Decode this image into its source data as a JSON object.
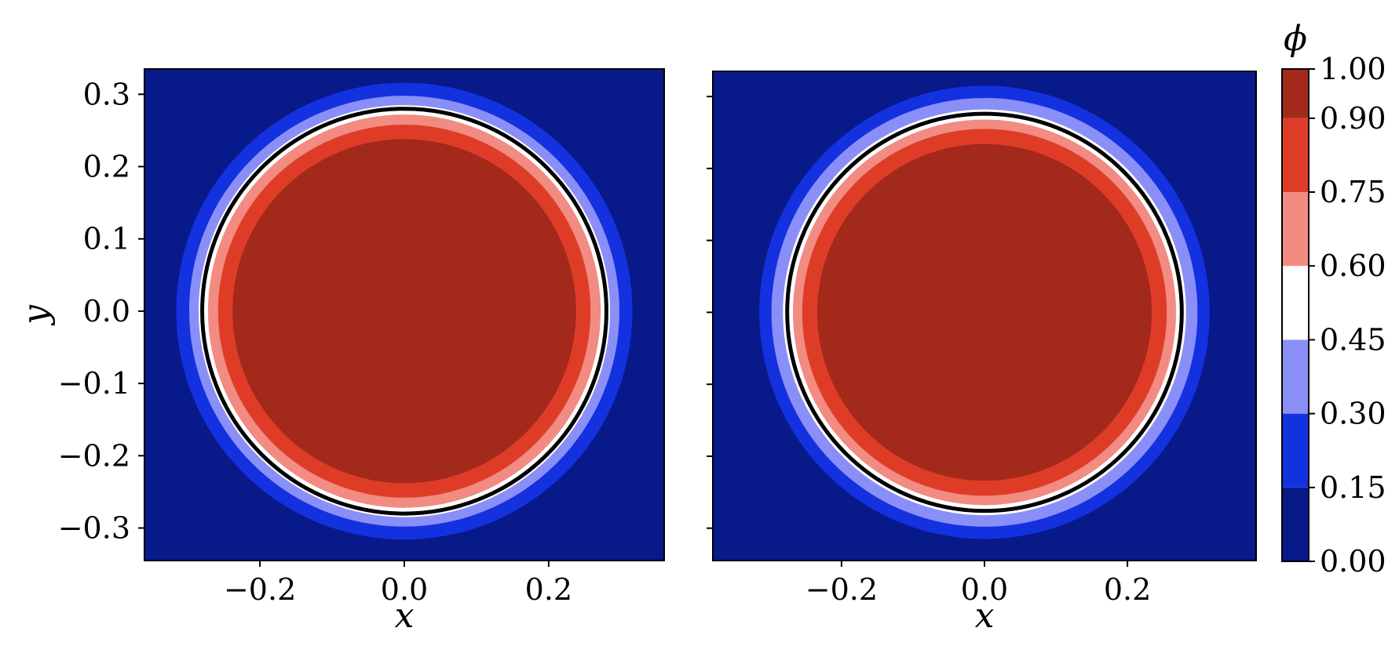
{
  "chart_data": [
    {
      "type": "heatmap",
      "plot": "filled-contour",
      "field": "phi",
      "shape": "circle",
      "center": [
        0.0,
        0.0
      ],
      "contour_radius": 0.28,
      "contour_line_styles": [
        "solid-black",
        "white"
      ],
      "xlabel": "x",
      "ylabel": "y",
      "xlim": [
        -0.36,
        0.36
      ],
      "ylim": [
        -0.345,
        0.335
      ],
      "xticks": [
        -0.2,
        0.0,
        0.2
      ],
      "xtick_labels": [
        "−0.2",
        "0.0",
        "0.2"
      ],
      "yticks": [
        0.3,
        0.2,
        0.1,
        0.0,
        -0.1,
        -0.2,
        -0.3
      ],
      "ytick_labels": [
        "0.3",
        "0.2",
        "0.1",
        "0.0",
        "−0.1",
        "−0.2",
        "−0.3"
      ],
      "band_radii": [
        {
          "level_min": 0.9,
          "level_max": 1.0,
          "radius": 0.238
        },
        {
          "level_min": 0.75,
          "level_max": 0.9,
          "radius": 0.258
        },
        {
          "level_min": 0.6,
          "level_max": 0.75,
          "radius": 0.272
        },
        {
          "level_min": 0.45,
          "level_max": 0.6,
          "radius": 0.285
        },
        {
          "level_min": 0.3,
          "level_max": 0.45,
          "radius": 0.298
        },
        {
          "level_min": 0.15,
          "level_max": 0.3,
          "radius": 0.316
        }
      ]
    },
    {
      "type": "heatmap",
      "plot": "filled-contour",
      "field": "phi",
      "shape": "circle",
      "center": [
        0.0,
        0.0
      ],
      "contour_radius": 0.276,
      "contour_line_styles": [
        "solid-black",
        "dashed-white"
      ],
      "xlabel": "x",
      "ylabel": "",
      "xlim": [
        -0.38,
        0.38
      ],
      "ylim": [
        -0.345,
        0.335
      ],
      "xticks": [
        -0.2,
        0.0,
        0.2
      ],
      "xtick_labels": [
        "−0.2",
        "0.0",
        "0.2"
      ],
      "yticks": [
        0.3,
        0.2,
        0.1,
        0.0,
        -0.1,
        -0.2,
        -0.3
      ],
      "ytick_labels": [],
      "band_radii": [
        {
          "level_min": 0.9,
          "level_max": 1.0,
          "radius": 0.234
        },
        {
          "level_min": 0.75,
          "level_max": 0.9,
          "radius": 0.255
        },
        {
          "level_min": 0.6,
          "level_max": 0.75,
          "radius": 0.268
        },
        {
          "level_min": 0.45,
          "level_max": 0.6,
          "radius": 0.282
        },
        {
          "level_min": 0.3,
          "level_max": 0.45,
          "radius": 0.298
        },
        {
          "level_min": 0.15,
          "level_max": 0.3,
          "radius": 0.315
        }
      ]
    }
  ],
  "colorbar": {
    "label": "ϕ",
    "levels": [
      0.0,
      0.15,
      0.3,
      0.45,
      0.6,
      0.75,
      0.9,
      1.0
    ],
    "tick_labels": [
      "0.00",
      "0.15",
      "0.30",
      "0.45",
      "0.60",
      "0.75",
      "0.90",
      "1.00"
    ],
    "colors": [
      "#08198a",
      "#1431e0",
      "#8a8ff7",
      "#ffffff",
      "#f28b82",
      "#df3c28",
      "#a3291a"
    ]
  },
  "contour_colors": {
    "line": "#000000",
    "inner_line": "#ffffff"
  }
}
